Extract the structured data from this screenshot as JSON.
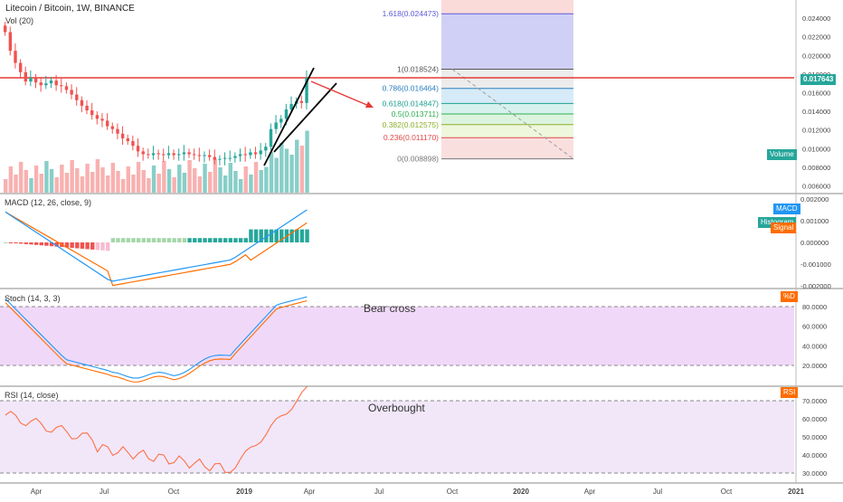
{
  "header": {
    "title": "Litecoin / Bitcoin, 1W, BINANCE",
    "vol_label": "Vol (20)"
  },
  "price_axis": {
    "ticks": [
      "0.024000",
      "0.022000",
      "0.020000",
      "0.018000",
      "0.016000",
      "0.014000",
      "0.012000",
      "0.010000",
      "0.008000",
      "0.006000"
    ],
    "current_price": "0.017643",
    "volume_tag": "Volume"
  },
  "fib": {
    "levels": [
      {
        "label": "1.618(0.024473)",
        "color": "#5b5bd6"
      },
      {
        "label": "1(0.018524)",
        "color": "#555555"
      },
      {
        "label": "0.786(0.016464)",
        "color": "#2a7fbf"
      },
      {
        "label": "0.618(0.014847)",
        "color": "#1e9f8f"
      },
      {
        "label": "0.5(0.013711)",
        "color": "#2fae4f"
      },
      {
        "label": "0.382(0.012575)",
        "color": "#8cae2a"
      },
      {
        "label": "0.236(0.011170)",
        "color": "#e04848"
      },
      {
        "label": "0(0.008898)",
        "color": "#777777"
      }
    ]
  },
  "macd": {
    "label": "MACD (12, 26, close, 9)",
    "ticks": [
      "0.002000",
      "0.001000",
      "0.000000",
      "-0.001000",
      "-0.002000"
    ],
    "tag_macd": "MACD",
    "tag_hist": "Histogram",
    "tag_signal": "Signal"
  },
  "stoch": {
    "label": "Stoch (14, 3, 3)",
    "ticks": [
      "80.0000",
      "60.0000",
      "40.0000",
      "20.0000"
    ],
    "tag": "%D",
    "annotation": "Bear cross"
  },
  "rsi": {
    "label": "RSI (14, close)",
    "ticks": [
      "70.0000",
      "60.0000",
      "50.0000",
      "40.0000",
      "30.0000"
    ],
    "tag": "RSI",
    "annotation": "Overbought"
  },
  "time_axis": [
    "Apr",
    "Jul",
    "Oct",
    "2019",
    "Apr",
    "Jul",
    "Oct",
    "2020",
    "Apr",
    "Jul",
    "Oct",
    "2021"
  ],
  "colors": {
    "up": "#26a69a",
    "down": "#ef5350",
    "macd_line": "#2196f3",
    "signal_line": "#ff6d00",
    "resistance": "#e53935",
    "channel": "#000000"
  },
  "chart_data": {
    "type": "candlestick",
    "symbol": "LTC/BTC",
    "interval": "1W",
    "exchange": "BINANCE",
    "close_approx": [
      0.0225,
      0.0205,
      0.0192,
      0.0182,
      0.0172,
      0.0176,
      0.0171,
      0.0168,
      0.017,
      0.0173,
      0.0168,
      0.0167,
      0.0163,
      0.0158,
      0.0152,
      0.0146,
      0.0141,
      0.0136,
      0.0132,
      0.013,
      0.0124,
      0.0121,
      0.0116,
      0.0111,
      0.0108,
      0.0103,
      0.0097,
      0.0094,
      0.0093,
      0.0095,
      0.0094,
      0.0093,
      0.0095,
      0.0093,
      0.0094,
      0.0096,
      0.0094,
      0.0093,
      0.0092,
      0.0093,
      0.0091,
      0.0088,
      0.0089,
      0.009,
      0.009,
      0.0092,
      0.0094,
      0.0093,
      0.0096,
      0.0094,
      0.0098,
      0.0102,
      0.0121,
      0.0128,
      0.0132,
      0.0142,
      0.0148,
      0.0151,
      0.0149,
      0.0176
    ],
    "resistance_level": 0.018,
    "current_price": 0.017643,
    "fib_levels": {
      "0": 0.008898,
      "0.236": 0.01117,
      "0.382": 0.012575,
      "0.5": 0.013711,
      "0.618": 0.014847,
      "0.786": 0.016464,
      "1": 0.018524,
      "1.618": 0.024473
    },
    "annotations": [
      "Bear cross",
      "Overbought"
    ],
    "rsi_last": 75,
    "stoch_last": 89
  }
}
